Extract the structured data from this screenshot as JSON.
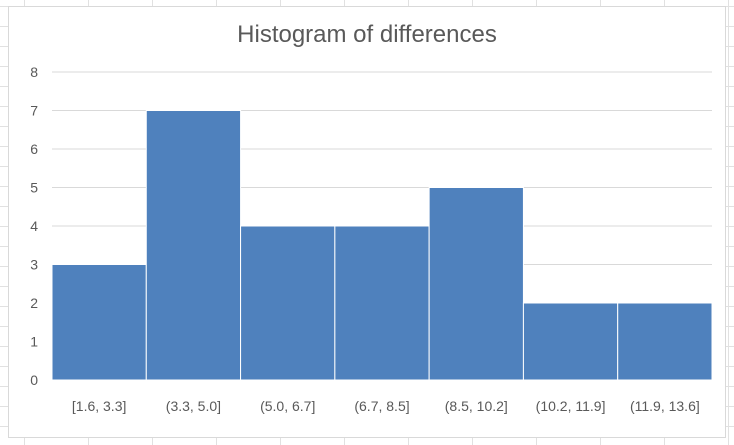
{
  "chart_data": {
    "type": "bar",
    "title": "Histogram of differences",
    "categories": [
      "[1.6, 3.3]",
      "(3.3, 5.0]",
      "(5.0, 6.7]",
      "(6.7, 8.5]",
      "(8.5, 10.2]",
      "(10.2, 11.9]",
      "(11.9, 13.6]"
    ],
    "values": [
      3,
      7,
      4,
      4,
      5,
      2,
      2
    ],
    "xlabel": "",
    "ylabel": "",
    "ylim": [
      0,
      8
    ],
    "yticks": [
      0,
      1,
      2,
      3,
      4,
      5,
      6,
      7,
      8
    ],
    "grid": true,
    "legend": "none",
    "colors": {
      "bar": "#4f81bd",
      "bar_border": "#ffffff",
      "grid": "#d9d9d9",
      "text": "#595959"
    }
  }
}
